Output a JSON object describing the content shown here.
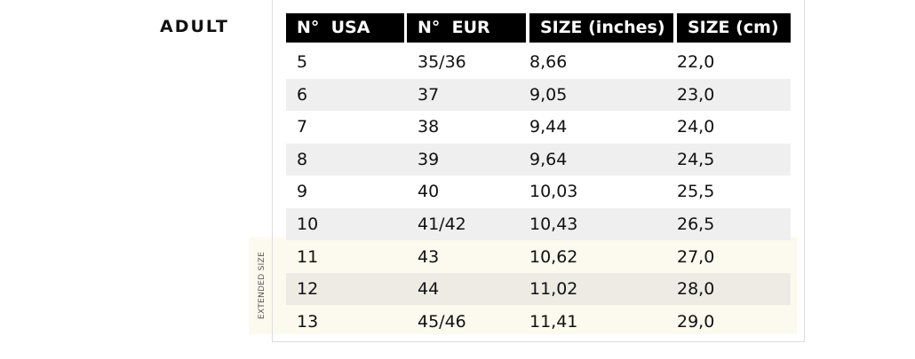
{
  "section_label": "ADULT",
  "extended_label": "EXTENDED SIZE",
  "headers": [
    "N°  USA",
    "N°  EUR",
    "SIZE (inches)",
    "SIZE (cm)"
  ],
  "rows": [
    [
      "5",
      "35/36",
      "8,66",
      "22,0"
    ],
    [
      "6",
      "37",
      "9,05",
      "23,0"
    ],
    [
      "7",
      "38",
      "9,44",
      "24,0"
    ],
    [
      "8",
      "39",
      "9,64",
      "24,5"
    ],
    [
      "9",
      "40",
      "10,03",
      "25,5"
    ],
    [
      "10",
      "41/42",
      "10,43",
      "26,5"
    ],
    [
      "11",
      "43",
      "10,62",
      "27,0"
    ],
    [
      "12",
      "44",
      "11,02",
      "28,0"
    ],
    [
      "13",
      "45/46",
      "11,41",
      "29,0"
    ]
  ],
  "colors": {
    "header_bg": "#000000",
    "stripe": "#efefef",
    "extended_bg": "#fcf9ee"
  }
}
